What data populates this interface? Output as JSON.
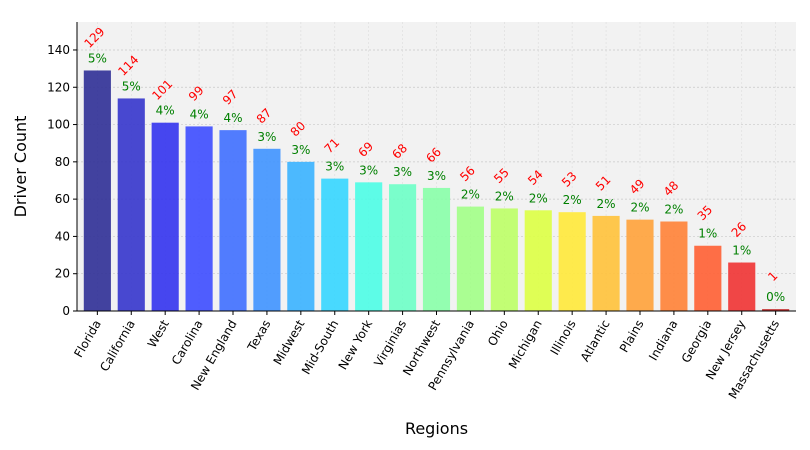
{
  "chart_data": {
    "type": "bar",
    "xlabel": "Regions",
    "ylabel": "Driver Count",
    "ylim": [
      0,
      155
    ],
    "yticks": [
      0,
      20,
      40,
      60,
      80,
      100,
      120,
      140
    ],
    "grid": true,
    "categories": [
      "Florida",
      "California",
      "West",
      "Carolina",
      "New England",
      "Texas",
      "Midwest",
      "Mid-South",
      "New York",
      "Virginias",
      "Northwest",
      "Pennsylvania",
      "Ohio",
      "Michigan",
      "Illinois",
      "Atlantic",
      "Plains",
      "Indiana",
      "Georgia",
      "New Jersey",
      "Massachusetts"
    ],
    "values": [
      129,
      114,
      101,
      99,
      97,
      87,
      80,
      71,
      69,
      68,
      66,
      56,
      55,
      54,
      53,
      51,
      49,
      48,
      35,
      26,
      1
    ],
    "percent_labels": [
      "5%",
      "5%",
      "4%",
      "4%",
      "4%",
      "3%",
      "3%",
      "3%",
      "3%",
      "3%",
      "3%",
      "2%",
      "2%",
      "2%",
      "2%",
      "2%",
      "2%",
      "2%",
      "1%",
      "1%",
      "0%"
    ],
    "value_label_color": "#ff0000",
    "percent_label_color": "#008000",
    "plot_background": "#f2f2f2",
    "bar_colors": [
      "#2f2f96",
      "#3535cc",
      "#3333ee",
      "#3d4dff",
      "#3f6fff",
      "#3f93ff",
      "#3ab2ff",
      "#35d6ff",
      "#4cfde6",
      "#6dffc6",
      "#88ffa8",
      "#a2ff87",
      "#bcff66",
      "#ddff44",
      "#ffe93a",
      "#ffc23a",
      "#ffa23a",
      "#ff8236",
      "#ff5f33",
      "#ef3333",
      "#c02020"
    ]
  }
}
